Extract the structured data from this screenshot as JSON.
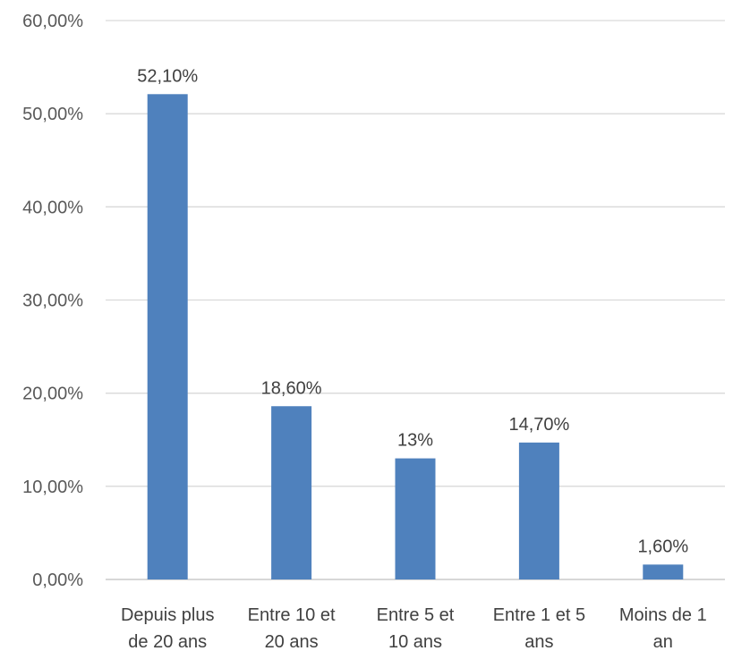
{
  "chart_data": {
    "type": "bar",
    "categories": [
      [
        "Depuis plus",
        "de 20 ans"
      ],
      [
        "Entre 10 et",
        "20 ans"
      ],
      [
        "Entre 5 et",
        "10 ans"
      ],
      [
        "Entre 1 et 5",
        "ans"
      ],
      [
        "Moins de 1",
        "an"
      ]
    ],
    "values": [
      52.1,
      18.6,
      13,
      14.7,
      1.6
    ],
    "data_labels": [
      "52,10%",
      "18,60%",
      "13%",
      "14,70%",
      "1,60%"
    ],
    "ylim": [
      0,
      60
    ],
    "yticks": [
      0,
      10,
      20,
      30,
      40,
      50,
      60
    ],
    "ytick_labels": [
      "0,00%",
      "10,00%",
      "20,00%",
      "30,00%",
      "40,00%",
      "50,00%",
      "60,00%"
    ],
    "title": "",
    "xlabel": "",
    "ylabel": "",
    "grid": true,
    "legend": "none",
    "colors": {
      "bar": "#4f81bd",
      "grid": "#d9d9d9",
      "axis": "#bfbfbf"
    }
  }
}
